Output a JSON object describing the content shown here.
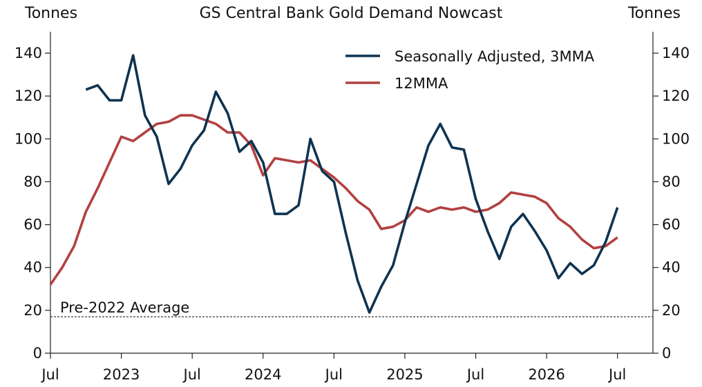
{
  "chart_data": {
    "type": "line",
    "title": "GS Central Bank Gold Demand Nowcast",
    "ylabel_left": "Tonnes",
    "ylabel_right": "Tonnes",
    "ylim": [
      0,
      150
    ],
    "yticks": [
      0,
      20,
      40,
      60,
      80,
      100,
      120,
      140
    ],
    "xlim": [
      "2022-07",
      "2026-10"
    ],
    "xticks": [
      {
        "date": "2022-07",
        "label": "Jul"
      },
      {
        "date": "2023-01",
        "label": "2023"
      },
      {
        "date": "2023-07",
        "label": "Jul"
      },
      {
        "date": "2024-01",
        "label": "2024"
      },
      {
        "date": "2024-07",
        "label": "Jul"
      },
      {
        "date": "2025-01",
        "label": "2025"
      },
      {
        "date": "2025-07",
        "label": "Jul"
      },
      {
        "date": "2026-01",
        "label": "2026"
      },
      {
        "date": "2026-07",
        "label": "Jul"
      }
    ],
    "legend_position": "top-right",
    "series": [
      {
        "name": "Seasonally Adjusted, 3MMA",
        "color": "#0f3350",
        "points": [
          [
            "2022-10",
            123
          ],
          [
            "2022-11",
            125
          ],
          [
            "2022-12",
            118
          ],
          [
            "2023-01",
            118
          ],
          [
            "2023-02",
            139
          ],
          [
            "2023-03",
            111
          ],
          [
            "2023-04",
            101
          ],
          [
            "2023-05",
            79
          ],
          [
            "2023-06",
            86
          ],
          [
            "2023-07",
            97
          ],
          [
            "2023-08",
            104
          ],
          [
            "2023-09",
            122
          ],
          [
            "2023-10",
            112
          ],
          [
            "2023-11",
            94
          ],
          [
            "2023-12",
            99
          ],
          [
            "2024-01",
            89
          ],
          [
            "2024-02",
            65
          ],
          [
            "2024-03",
            65
          ],
          [
            "2024-04",
            69
          ],
          [
            "2024-05",
            100
          ],
          [
            "2024-06",
            85
          ],
          [
            "2024-07",
            80
          ],
          [
            "2024-08",
            56
          ],
          [
            "2024-09",
            34
          ],
          [
            "2024-10",
            19
          ],
          [
            "2024-11",
            31
          ],
          [
            "2024-12",
            41
          ],
          [
            "2025-01",
            61
          ],
          [
            "2025-02",
            79
          ],
          [
            "2025-03",
            97
          ],
          [
            "2025-04",
            107
          ],
          [
            "2025-05",
            96
          ],
          [
            "2025-06",
            95
          ],
          [
            "2025-07",
            72
          ],
          [
            "2025-08",
            57
          ],
          [
            "2025-09",
            44
          ],
          [
            "2025-10",
            59
          ],
          [
            "2025-11",
            65
          ],
          [
            "2025-12",
            57
          ],
          [
            "2026-01",
            48
          ],
          [
            "2026-02",
            35
          ],
          [
            "2026-03",
            42
          ],
          [
            "2026-04",
            37
          ],
          [
            "2026-05",
            41
          ],
          [
            "2026-06",
            52
          ],
          [
            "2026-07",
            68
          ]
        ]
      },
      {
        "name": "12MMA",
        "color": "#b24040",
        "points": [
          [
            "2022-07",
            32
          ],
          [
            "2022-08",
            40
          ],
          [
            "2022-09",
            50
          ],
          [
            "2022-10",
            66
          ],
          [
            "2022-11",
            77
          ],
          [
            "2022-12",
            89
          ],
          [
            "2023-01",
            101
          ],
          [
            "2023-02",
            99
          ],
          [
            "2023-03",
            103
          ],
          [
            "2023-04",
            107
          ],
          [
            "2023-05",
            108
          ],
          [
            "2023-06",
            111
          ],
          [
            "2023-07",
            111
          ],
          [
            "2023-08",
            109
          ],
          [
            "2023-09",
            107
          ],
          [
            "2023-10",
            103
          ],
          [
            "2023-11",
            103
          ],
          [
            "2023-12",
            97
          ],
          [
            "2024-01",
            83
          ],
          [
            "2024-02",
            91
          ],
          [
            "2024-03",
            90
          ],
          [
            "2024-04",
            89
          ],
          [
            "2024-05",
            90
          ],
          [
            "2024-06",
            86
          ],
          [
            "2024-07",
            82
          ],
          [
            "2024-08",
            77
          ],
          [
            "2024-09",
            71
          ],
          [
            "2024-10",
            67
          ],
          [
            "2024-11",
            58
          ],
          [
            "2024-12",
            59
          ],
          [
            "2025-01",
            62
          ],
          [
            "2025-02",
            68
          ],
          [
            "2025-03",
            66
          ],
          [
            "2025-04",
            68
          ],
          [
            "2025-05",
            67
          ],
          [
            "2025-06",
            68
          ],
          [
            "2025-07",
            66
          ],
          [
            "2025-08",
            67
          ],
          [
            "2025-09",
            70
          ],
          [
            "2025-10",
            75
          ],
          [
            "2025-11",
            74
          ],
          [
            "2025-12",
            73
          ],
          [
            "2026-01",
            70
          ],
          [
            "2026-02",
            63
          ],
          [
            "2026-03",
            59
          ],
          [
            "2026-04",
            53
          ],
          [
            "2026-05",
            49
          ],
          [
            "2026-06",
            50
          ],
          [
            "2026-07",
            54
          ]
        ]
      }
    ],
    "reference_lines": [
      {
        "label": "Pre-2022 Average",
        "value": 17,
        "style": "dashed",
        "color": "#222222"
      }
    ]
  }
}
